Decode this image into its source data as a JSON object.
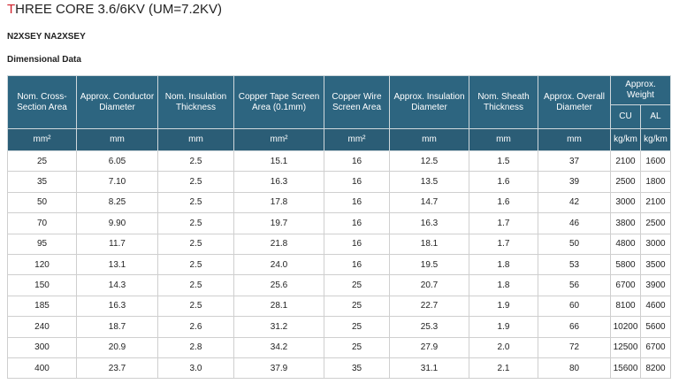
{
  "header": {
    "title": "THREE CORE 3.6/6KV (UM=7.2KV)",
    "subtitle": "N2XSEY NA2XSEY",
    "section": "Dimensional Data"
  },
  "table": {
    "columns": [
      "Nom. Cross-Section Area",
      "Approx. Conductor Diameter",
      "Nom. Insulation Thickness",
      "Copper Tape Screen Area (0.1mm)",
      "Copper Wire Screen Area",
      "Approx. Insulation Diameter",
      "Nom. Sheath Thickness",
      "Approx. Overall Diameter"
    ],
    "weight_group": "Approx. Weight",
    "weight_columns": [
      "CU",
      "AL"
    ],
    "units": [
      "mm²",
      "mm",
      "mm",
      "mm²",
      "mm²",
      "mm",
      "mm",
      "mm",
      "kg/km",
      "kg/km"
    ],
    "rows": [
      [
        "25",
        "6.05",
        "2.5",
        "15.1",
        "16",
        "12.5",
        "1.5",
        "37",
        "2100",
        "1600"
      ],
      [
        "35",
        "7.10",
        "2.5",
        "16.3",
        "16",
        "13.5",
        "1.6",
        "39",
        "2500",
        "1800"
      ],
      [
        "50",
        "8.25",
        "2.5",
        "17.8",
        "16",
        "14.7",
        "1.6",
        "42",
        "3000",
        "2100"
      ],
      [
        "70",
        "9.90",
        "2.5",
        "19.7",
        "16",
        "16.3",
        "1.7",
        "46",
        "3800",
        "2500"
      ],
      [
        "95",
        "11.7",
        "2.5",
        "21.8",
        "16",
        "18.1",
        "1.7",
        "50",
        "4800",
        "3000"
      ],
      [
        "120",
        "13.1",
        "2.5",
        "24.0",
        "16",
        "19.5",
        "1.8",
        "53",
        "5800",
        "3500"
      ],
      [
        "150",
        "14.3",
        "2.5",
        "25.6",
        "25",
        "20.7",
        "1.8",
        "56",
        "6700",
        "3900"
      ],
      [
        "185",
        "16.3",
        "2.5",
        "28.1",
        "25",
        "22.7",
        "1.9",
        "60",
        "8100",
        "4600"
      ],
      [
        "240",
        "18.7",
        "2.6",
        "31.2",
        "25",
        "25.3",
        "1.9",
        "66",
        "10200",
        "5600"
      ],
      [
        "300",
        "20.9",
        "2.8",
        "34.2",
        "25",
        "27.9",
        "2.0",
        "72",
        "12500",
        "6700"
      ],
      [
        "400",
        "23.7",
        "3.0",
        "37.9",
        "35",
        "31.1",
        "2.1",
        "80",
        "15600",
        "8200"
      ]
    ]
  }
}
